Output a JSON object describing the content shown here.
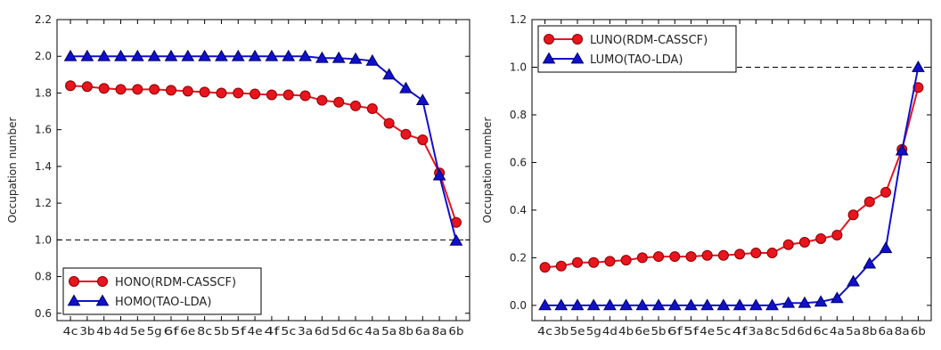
{
  "chart_data": [
    {
      "type": "line",
      "ylabel": "Occupation number",
      "categories": [
        "4c",
        "3b",
        "4b",
        "4d",
        "5e",
        "5g",
        "6f",
        "6e",
        "8c",
        "5b",
        "5f",
        "4e",
        "4f",
        "5c",
        "3a",
        "6d",
        "5d",
        "6c",
        "4a",
        "5a",
        "8b",
        "6a",
        "8a",
        "6b"
      ],
      "series": [
        {
          "name": "HONO(RDM-CASSCF)",
          "color": "#e8141e",
          "marker": "circle",
          "values": [
            1.84,
            1.835,
            1.825,
            1.82,
            1.82,
            1.82,
            1.815,
            1.81,
            1.805,
            1.8,
            1.8,
            1.795,
            1.79,
            1.79,
            1.785,
            1.76,
            1.75,
            1.73,
            1.715,
            1.635,
            1.575,
            1.545,
            1.365,
            1.095
          ]
        },
        {
          "name": "HOMO(TAO-LDA)",
          "color": "#1010cc",
          "marker": "triangle",
          "values": [
            2.0,
            2.0,
            2.0,
            2.0,
            2.0,
            2.0,
            2.0,
            2.0,
            2.0,
            2.0,
            2.0,
            2.0,
            2.0,
            2.0,
            2.0,
            1.99,
            1.99,
            1.985,
            1.975,
            1.9,
            1.825,
            1.76,
            1.35,
            0.995
          ]
        }
      ],
      "ylim": [
        0.56,
        2.2
      ],
      "yticks": [
        0.6,
        0.8,
        {
          "value": 1,
          "label": "1.0"
        },
        1.2,
        1.4,
        1.6,
        1.8,
        {
          "value": 2,
          "label": "2.0"
        },
        2.2
      ],
      "hline": 1,
      "legend": "lower left"
    },
    {
      "type": "line",
      "ylabel": "Occupation number",
      "categories": [
        "4c",
        "3b",
        "5e",
        "5g",
        "4d",
        "4b",
        "6e",
        "5b",
        "6f",
        "5f",
        "4e",
        "5c",
        "4f",
        "3a",
        "8c",
        "5d",
        "6d",
        "6c",
        "4a",
        "5a",
        "8b",
        "6a",
        "8a",
        "6b"
      ],
      "series": [
        {
          "name": "LUNO(RDM-CASSCF)",
          "color": "#e8141e",
          "marker": "circle",
          "values": [
            0.16,
            0.165,
            0.18,
            0.18,
            0.185,
            0.19,
            0.2,
            0.205,
            0.205,
            0.205,
            0.21,
            0.21,
            0.215,
            0.22,
            0.22,
            0.255,
            0.265,
            0.28,
            0.295,
            0.38,
            0.435,
            0.475,
            0.655,
            0.915
          ]
        },
        {
          "name": "LUMO(TAO-LDA)",
          "color": "#1010cc",
          "marker": "triangle",
          "values": [
            0,
            0,
            0,
            0,
            0,
            0,
            0,
            0,
            0,
            0,
            0,
            0,
            0,
            0,
            0,
            0.01,
            0.01,
            0.015,
            0.03,
            0.1,
            0.175,
            0.24,
            0.65,
            1.0
          ]
        }
      ],
      "ylim": [
        -0.064,
        1.2
      ],
      "yticks": [
        {
          "value": 0,
          "label": "0.0"
        },
        0.2,
        0.4,
        0.6,
        0.8,
        {
          "value": 1,
          "label": "1.0"
        },
        1.2
      ],
      "hline": 1,
      "legend": "upper left"
    }
  ]
}
